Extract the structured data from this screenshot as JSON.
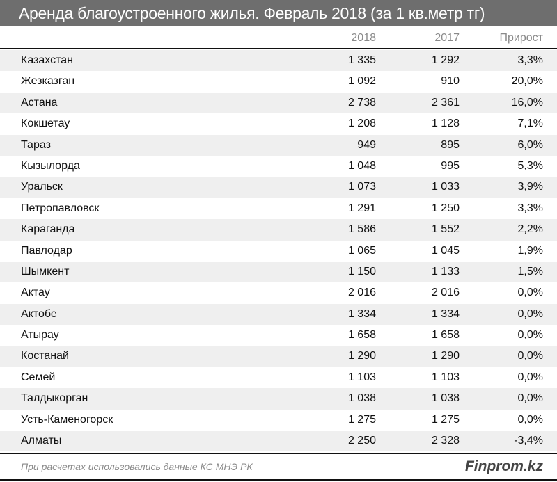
{
  "chart_data": {
    "type": "table",
    "title": "Аренда благоустроенного жилья. Февраль 2018 (за 1 кв.метр тг)",
    "columns": [
      "",
      "2018",
      "2017",
      "Прирост"
    ],
    "rows": [
      {
        "name": "Казахстан",
        "v2018": "1 335",
        "v2017": "1 292",
        "growth": "3,3%"
      },
      {
        "name": "Жезказган",
        "v2018": "1 092",
        "v2017": "910",
        "growth": "20,0%"
      },
      {
        "name": "Астана",
        "v2018": "2 738",
        "v2017": "2 361",
        "growth": "16,0%"
      },
      {
        "name": "Кокшетау",
        "v2018": "1 208",
        "v2017": "1 128",
        "growth": "7,1%"
      },
      {
        "name": "Тараз",
        "v2018": "949",
        "v2017": "895",
        "growth": "6,0%"
      },
      {
        "name": "Кызылорда",
        "v2018": "1 048",
        "v2017": "995",
        "growth": "5,3%"
      },
      {
        "name": "Уральск",
        "v2018": "1 073",
        "v2017": "1 033",
        "growth": "3,9%"
      },
      {
        "name": "Петропавловск",
        "v2018": "1 291",
        "v2017": "1 250",
        "growth": "3,3%"
      },
      {
        "name": "Караганда",
        "v2018": "1 586",
        "v2017": "1 552",
        "growth": "2,2%"
      },
      {
        "name": "Павлодар",
        "v2018": "1 065",
        "v2017": "1 045",
        "growth": "1,9%"
      },
      {
        "name": "Шымкент",
        "v2018": "1 150",
        "v2017": "1 133",
        "growth": "1,5%"
      },
      {
        "name": "Актау",
        "v2018": "2 016",
        "v2017": "2 016",
        "growth": "0,0%"
      },
      {
        "name": "Актобе",
        "v2018": "1 334",
        "v2017": "1 334",
        "growth": "0,0%"
      },
      {
        "name": "Атырау",
        "v2018": "1 658",
        "v2017": "1 658",
        "growth": "0,0%"
      },
      {
        "name": "Костанай",
        "v2018": "1 290",
        "v2017": "1 290",
        "growth": "0,0%"
      },
      {
        "name": "Семей",
        "v2018": "1 103",
        "v2017": "1 103",
        "growth": "0,0%"
      },
      {
        "name": "Талдыкорган",
        "v2018": "1 038",
        "v2017": "1 038",
        "growth": "0,0%"
      },
      {
        "name": "Усть-Каменогорск",
        "v2018": "1 275",
        "v2017": "1 275",
        "growth": "0,0%"
      },
      {
        "name": "Алматы",
        "v2018": "2 250",
        "v2017": "2 328",
        "growth": "-3,4%"
      }
    ],
    "source": "При расчетах использовались данные КС МНЭ РК",
    "brand": "Finprom.kz"
  },
  "colors": {
    "title_bg": "#6e6e6e",
    "row_shade": "#efefef"
  }
}
